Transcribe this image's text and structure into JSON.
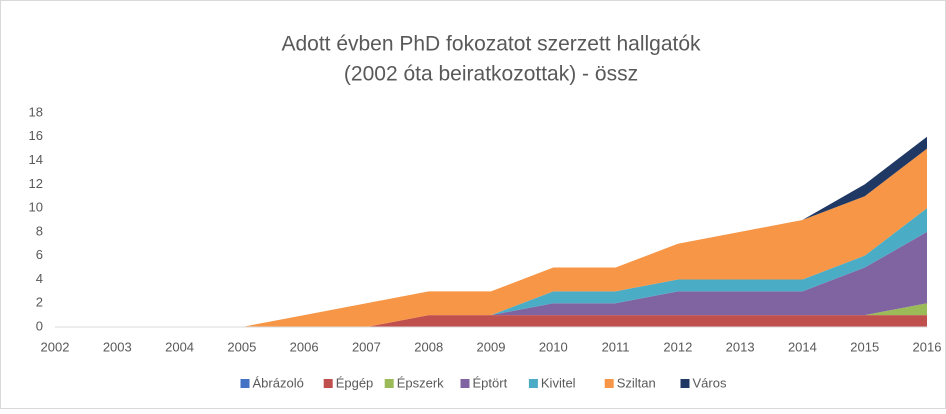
{
  "chart_data": {
    "type": "stacked_area",
    "title": [
      "Adott évben PhD fokozatot szerzett hallgatók",
      "(2002 óta beiratkozottak)  - össz"
    ],
    "categories": [
      "2002",
      "2003",
      "2004",
      "2005",
      "2006",
      "2007",
      "2008",
      "2009",
      "2010",
      "2011",
      "2012",
      "2013",
      "2014",
      "2015",
      "2016"
    ],
    "series": [
      {
        "name": "Ábrázoló",
        "color": "#4472c4",
        "values": [
          0,
          0,
          0,
          0,
          0,
          0,
          0,
          0,
          0,
          0,
          0,
          0,
          0,
          0,
          0
        ]
      },
      {
        "name": "Épgép",
        "color": "#c0504d",
        "values": [
          0,
          0,
          0,
          0,
          0,
          0,
          1,
          1,
          1,
          1,
          1,
          1,
          1,
          1,
          1
        ]
      },
      {
        "name": "Épszerk",
        "color": "#9bbb59",
        "values": [
          0,
          0,
          0,
          0,
          0,
          0,
          0,
          0,
          0,
          0,
          0,
          0,
          0,
          0,
          1
        ]
      },
      {
        "name": "Éptört",
        "color": "#8064a2",
        "values": [
          0,
          0,
          0,
          0,
          0,
          0,
          0,
          0,
          1,
          1,
          2,
          2,
          2,
          4,
          6
        ]
      },
      {
        "name": "Kivitel",
        "color": "#4bacc6",
        "values": [
          0,
          0,
          0,
          0,
          0,
          0,
          0,
          0,
          1,
          1,
          1,
          1,
          1,
          1,
          2
        ]
      },
      {
        "name": "Sziltan",
        "color": "#f79646",
        "values": [
          0,
          0,
          0,
          0,
          1,
          2,
          2,
          2,
          2,
          2,
          3,
          4,
          5,
          5,
          5
        ]
      },
      {
        "name": "Város",
        "color": "#1f3864",
        "values": [
          0,
          0,
          0,
          0,
          0,
          0,
          0,
          0,
          0,
          0,
          0,
          0,
          0,
          1,
          1
        ]
      }
    ],
    "ylim": [
      0,
      18
    ],
    "yticks": [
      0,
      2,
      4,
      6,
      8,
      10,
      12,
      14,
      16,
      18
    ],
    "grid": false,
    "legend": "bottom"
  }
}
